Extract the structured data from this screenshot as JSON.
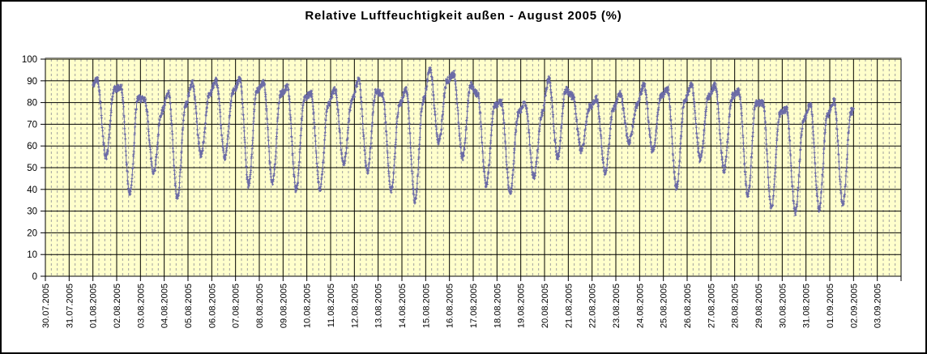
{
  "chart_data": {
    "type": "line",
    "title": "Relative Luftfeuchtigkeit außen - August 2005 (%)",
    "xlabel": "",
    "ylabel": "",
    "ylim": [
      0,
      100
    ],
    "y_ticks": [
      0,
      10,
      20,
      30,
      40,
      50,
      60,
      70,
      80,
      90,
      100
    ],
    "grid": {
      "major_horizontal": true,
      "major_vertical_per_day": true,
      "minor_vertical_dashed_per_quarter_day": true
    },
    "legend": "none",
    "x_categories": [
      "30.07.2005",
      "31.07.2005",
      "01.08.2005",
      "02.08.2005",
      "03.08.2005",
      "04.08.2005",
      "05.08.2005",
      "06.08.2005",
      "07.08.2005",
      "08.08.2005",
      "09.08.2005",
      "10.08.2005",
      "11.08.2005",
      "12.08.2005",
      "13.08.2005",
      "14.08.2005",
      "15.08.2005",
      "16.08.2005",
      "17.08.2005",
      "18.08.2005",
      "19.08.2005",
      "20.08.2005",
      "21.08.2005",
      "22.08.2005",
      "23.08.2005",
      "24.08.2005",
      "25.08.2005",
      "26.08.2005",
      "27.08.2005",
      "28.08.2005",
      "29.08.2005",
      "30.08.2005",
      "31.08.2005",
      "01.09.2005",
      "02.09.2005",
      "03.09.2005"
    ],
    "series": [
      {
        "name": "Relative Luftfeuchtigkeit außen (%)",
        "start_category": "01.08.2005",
        "end_category": "01.09.2005",
        "sampling_minutes": 15,
        "daily_night_max_day_min": [
          {
            "date": "01.08.2005",
            "max": 91,
            "min": 55
          },
          {
            "date": "02.08.2005",
            "max": 87,
            "min": 38
          },
          {
            "date": "03.08.2005",
            "max": 81,
            "min": 48
          },
          {
            "date": "04.08.2005",
            "max": 84,
            "min": 36
          },
          {
            "date": "05.08.2005",
            "max": 89,
            "min": 56
          },
          {
            "date": "06.08.2005",
            "max": 90,
            "min": 55
          },
          {
            "date": "07.08.2005",
            "max": 91,
            "min": 42
          },
          {
            "date": "08.08.2005",
            "max": 89,
            "min": 43
          },
          {
            "date": "09.08.2005",
            "max": 87,
            "min": 40
          },
          {
            "date": "10.08.2005",
            "max": 84,
            "min": 40
          },
          {
            "date": "11.08.2005",
            "max": 86,
            "min": 52
          },
          {
            "date": "12.08.2005",
            "max": 90,
            "min": 48
          },
          {
            "date": "13.08.2005",
            "max": 84,
            "min": 40
          },
          {
            "date": "14.08.2005",
            "max": 86,
            "min": 35
          },
          {
            "date": "15.08.2005",
            "max": 95,
            "min": 62
          },
          {
            "date": "16.08.2005",
            "max": 93,
            "min": 55
          },
          {
            "date": "17.08.2005",
            "max": 84,
            "min": 42
          },
          {
            "date": "18.08.2005",
            "max": 80,
            "min": 38
          },
          {
            "date": "19.08.2005",
            "max": 80,
            "min": 46
          },
          {
            "date": "20.08.2005",
            "max": 91,
            "min": 55
          },
          {
            "date": "21.08.2005",
            "max": 83,
            "min": 58
          },
          {
            "date": "22.08.2005",
            "max": 82,
            "min": 48
          },
          {
            "date": "23.08.2005",
            "max": 84,
            "min": 62
          },
          {
            "date": "24.08.2005",
            "max": 88,
            "min": 58
          },
          {
            "date": "25.08.2005",
            "max": 86,
            "min": 41
          },
          {
            "date": "26.08.2005",
            "max": 88,
            "min": 54
          },
          {
            "date": "27.08.2005",
            "max": 88,
            "min": 49
          },
          {
            "date": "28.08.2005",
            "max": 85,
            "min": 37
          },
          {
            "date": "29.08.2005",
            "max": 80,
            "min": 31
          },
          {
            "date": "30.08.2005",
            "max": 77,
            "min": 29
          },
          {
            "date": "31.08.2005",
            "max": 79,
            "min": 31
          },
          {
            "date": "01.09.2005",
            "max": 81,
            "min": 33
          }
        ],
        "end_value": 76
      }
    ],
    "colors": {
      "series": "#6B6BA6",
      "plot_background": "#FFFFCC",
      "grid_major": "#000000",
      "grid_minor": "#A0A0A0",
      "plot_border": "#808080",
      "text": "#000000",
      "frame_background": "#FFFFFF"
    }
  }
}
